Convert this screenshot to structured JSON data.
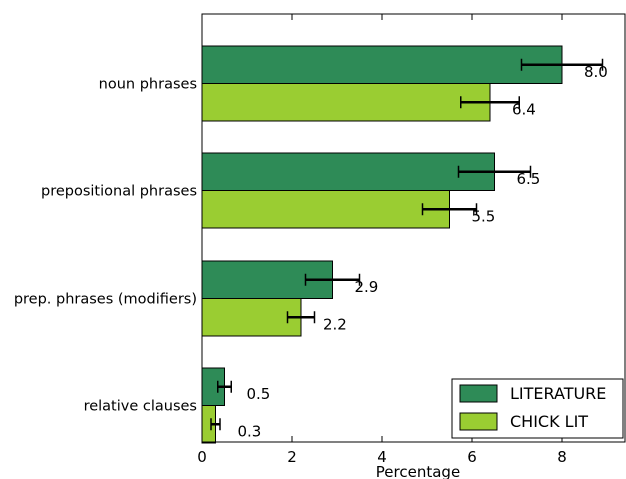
{
  "chart_data": {
    "type": "bar",
    "orientation": "horizontal",
    "categories": [
      "noun phrases",
      "prepositional phrases",
      "prep. phrases (modifiers)",
      "relative clauses"
    ],
    "series": [
      {
        "name": "LITERATURE",
        "color": "#2e8b57",
        "values": [
          8.0,
          6.5,
          2.9,
          0.5
        ],
        "errors": [
          0.9,
          0.8,
          0.6,
          0.15
        ],
        "labels": [
          "8.0",
          "6.5",
          "2.9",
          "0.5"
        ]
      },
      {
        "name": "CHICK LIT",
        "color": "#9acd32",
        "values": [
          6.4,
          5.5,
          2.2,
          0.3
        ],
        "errors": [
          0.65,
          0.6,
          0.3,
          0.1
        ],
        "labels": [
          "6.4",
          "5.5",
          "2.2",
          "0.3"
        ]
      }
    ],
    "xlabel": "Percentage",
    "xticks": [
      0,
      2,
      4,
      6,
      8
    ],
    "xlim": [
      0,
      9.4
    ],
    "legend_position": "bottom-right",
    "grid": false
  }
}
